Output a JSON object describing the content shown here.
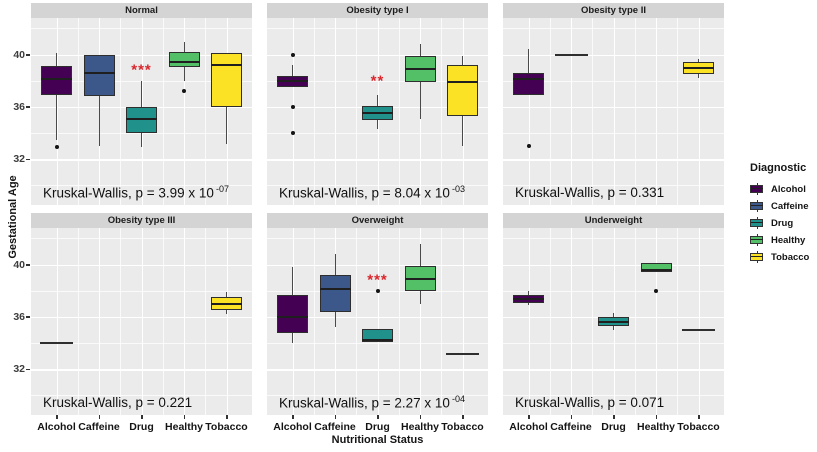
{
  "figure": {
    "ylabel": "Gestational Age",
    "xlabel": "Nutritional Status"
  },
  "legend": {
    "title": "Diagnostic",
    "entries": [
      {
        "label": "Alcohol",
        "color": "#440154"
      },
      {
        "label": "Caffeine",
        "color": "#3C5789"
      },
      {
        "label": "Drug",
        "color": "#21918C"
      },
      {
        "label": "Healthy",
        "color": "#53C068"
      },
      {
        "label": "Tobacco",
        "color": "#FBE224"
      }
    ]
  },
  "chart_data": {
    "type": "boxplot",
    "facet_variable": "BMI category",
    "categories": [
      "Alcohol",
      "Caffeine",
      "Drug",
      "Healthy",
      "Tobacco"
    ],
    "colors": {
      "Alcohol": "#440154",
      "Caffeine": "#3C5789",
      "Drug": "#21918C",
      "Healthy": "#53C068",
      "Tobacco": "#FBE224"
    },
    "ylabel": "Gestational Age",
    "xlabel": "Nutritional Status",
    "ylim": [
      28.5,
      42.8
    ],
    "yticks": [
      40,
      36,
      32
    ],
    "yticks_minor": [
      42,
      38,
      34,
      30
    ],
    "grid": true,
    "significance_color": "#D8262C",
    "facets": [
      {
        "title": "Normal",
        "row": 0,
        "col": 0,
        "p_text": "Kruskal-Wallis, p = 3.99 x 10",
        "p_sup": "-07",
        "significance": {
          "text": "***",
          "category": "Drug",
          "y": 38.85
        },
        "boxes": [
          {
            "category": "Alcohol",
            "whisker_low": 33.5,
            "q1": 36.9,
            "median": 38.1,
            "q3": 39.1,
            "whisker_high": 40.1,
            "outliers": [
              32.9
            ]
          },
          {
            "category": "Caffeine",
            "whisker_low": 33.0,
            "q1": 36.8,
            "median": 38.6,
            "q3": 40.0,
            "whisker_high": 40.0,
            "outliers": []
          },
          {
            "category": "Drug",
            "whisker_low": 32.9,
            "q1": 34.0,
            "median": 35.1,
            "q3": 36.0,
            "whisker_high": 38.0,
            "outliers": []
          },
          {
            "category": "Healthy",
            "whisker_low": 38.0,
            "q1": 39.05,
            "median": 39.4,
            "q3": 40.2,
            "whisker_high": 41.0,
            "outliers": [
              37.2
            ]
          },
          {
            "category": "Tobacco",
            "whisker_low": 33.2,
            "q1": 36.0,
            "median": 39.2,
            "q3": 40.1,
            "whisker_high": 40.1,
            "outliers": []
          }
        ]
      },
      {
        "title": "Obesity type I",
        "row": 0,
        "col": 1,
        "p_text": "Kruskal-Wallis, p = 8.04 x 10",
        "p_sup": "-03",
        "significance": {
          "text": "**",
          "category": "Drug",
          "y": 37.95
        },
        "boxes": [
          {
            "category": "Alcohol",
            "whisker_low": 37.55,
            "q1": 37.55,
            "median": 38.0,
            "q3": 38.35,
            "whisker_high": 39.2,
            "outliers": [
              40.0,
              36.0,
              34.0
            ]
          },
          {
            "category": "Drug",
            "whisker_low": 34.3,
            "q1": 35.0,
            "median": 35.5,
            "q3": 36.1,
            "whisker_high": 36.9,
            "outliers": []
          },
          {
            "category": "Healthy",
            "whisker_low": 35.1,
            "q1": 37.9,
            "median": 38.9,
            "q3": 39.9,
            "whisker_high": 40.8,
            "outliers": []
          },
          {
            "category": "Tobacco",
            "whisker_low": 33.0,
            "q1": 35.3,
            "median": 37.9,
            "q3": 39.2,
            "whisker_high": 39.9,
            "outliers": []
          }
        ]
      },
      {
        "title": "Obesity type II",
        "row": 0,
        "col": 2,
        "p_text": "Kruskal-Wallis, p = 0.331",
        "p_sup": "",
        "significance": null,
        "boxes": [
          {
            "category": "Alcohol",
            "whisker_low": 36.9,
            "q1": 36.9,
            "median": 38.1,
            "q3": 38.6,
            "whisker_high": 40.4,
            "outliers": [
              33.0
            ]
          },
          {
            "category": "Caffeine",
            "line": 40.0
          },
          {
            "category": "Tobacco",
            "whisker_low": 38.2,
            "q1": 38.5,
            "median": 39.0,
            "q3": 39.4,
            "whisker_high": 39.7,
            "outliers": []
          }
        ]
      },
      {
        "title": "Obesity type III",
        "row": 1,
        "col": 0,
        "p_text": "Kruskal-Wallis, p = 0.221",
        "p_sup": "",
        "significance": null,
        "boxes": [
          {
            "category": "Alcohol",
            "line": 34.0
          },
          {
            "category": "Tobacco",
            "whisker_low": 36.2,
            "q1": 36.5,
            "median": 37.0,
            "q3": 37.5,
            "whisker_high": 37.9,
            "outliers": []
          }
        ]
      },
      {
        "title": "Overweight",
        "row": 1,
        "col": 1,
        "p_text": "Kruskal-Wallis, p = 2.27 x 10",
        "p_sup": "-04",
        "significance": {
          "text": "***",
          "category": "Drug",
          "y": 38.8
        },
        "boxes": [
          {
            "category": "Alcohol",
            "whisker_low": 34.0,
            "q1": 34.8,
            "median": 36.0,
            "q3": 37.7,
            "whisker_high": 39.8,
            "outliers": []
          },
          {
            "category": "Caffeine",
            "whisker_low": 35.2,
            "q1": 36.4,
            "median": 38.1,
            "q3": 39.2,
            "whisker_high": 40.8,
            "outliers": []
          },
          {
            "category": "Drug",
            "whisker_low": 34.1,
            "q1": 34.1,
            "median": 34.25,
            "q3": 35.1,
            "whisker_high": 35.1,
            "outliers": [
              38.0
            ]
          },
          {
            "category": "Healthy",
            "whisker_low": 37.0,
            "q1": 38.0,
            "median": 38.9,
            "q3": 39.9,
            "whisker_high": 41.6,
            "outliers": []
          },
          {
            "category": "Tobacco",
            "line": 33.2
          }
        ]
      },
      {
        "title": "Underweight",
        "row": 1,
        "col": 2,
        "p_text": "Kruskal-Wallis, p = 0.071",
        "p_sup": "",
        "significance": null,
        "boxes": [
          {
            "category": "Alcohol",
            "whisker_low": 36.9,
            "q1": 37.1,
            "median": 37.4,
            "q3": 37.7,
            "whisker_high": 38.0,
            "outliers": []
          },
          {
            "category": "Drug",
            "whisker_low": 35.0,
            "q1": 35.3,
            "median": 35.6,
            "q3": 36.0,
            "whisker_high": 36.3,
            "outliers": []
          },
          {
            "category": "Healthy",
            "whisker_low": 39.4,
            "q1": 39.4,
            "median": 39.6,
            "q3": 40.1,
            "whisker_high": 40.1,
            "outliers": [
              38.0
            ]
          },
          {
            "category": "Tobacco",
            "line": 35.0
          }
        ]
      }
    ]
  }
}
